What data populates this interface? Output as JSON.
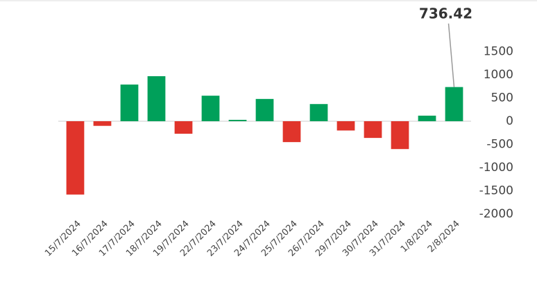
{
  "chart_data": {
    "type": "bar",
    "categories": [
      "15/7/2024",
      "16/7/2024",
      "17/7/2024",
      "18/7/2024",
      "19/7/2024",
      "22/7/2024",
      "23/7/2024",
      "24/7/2024",
      "25/7/2024",
      "26/7/2024",
      "29/7/2024",
      "30/7/2024",
      "31/7/2024",
      "1/8/2024",
      "2/8/2024"
    ],
    "values": [
      -1580,
      -100,
      790,
      970,
      -270,
      550,
      30,
      480,
      -450,
      370,
      -200,
      -360,
      -600,
      120,
      736.42
    ],
    "positive_color": "#00a05a",
    "negative_color": "#e0342b",
    "ylim": [
      -2000,
      2000
    ],
    "yticks": [
      -2000,
      -1500,
      -1000,
      -500,
      0,
      500,
      1000,
      1500
    ],
    "annotate": "last"
  }
}
